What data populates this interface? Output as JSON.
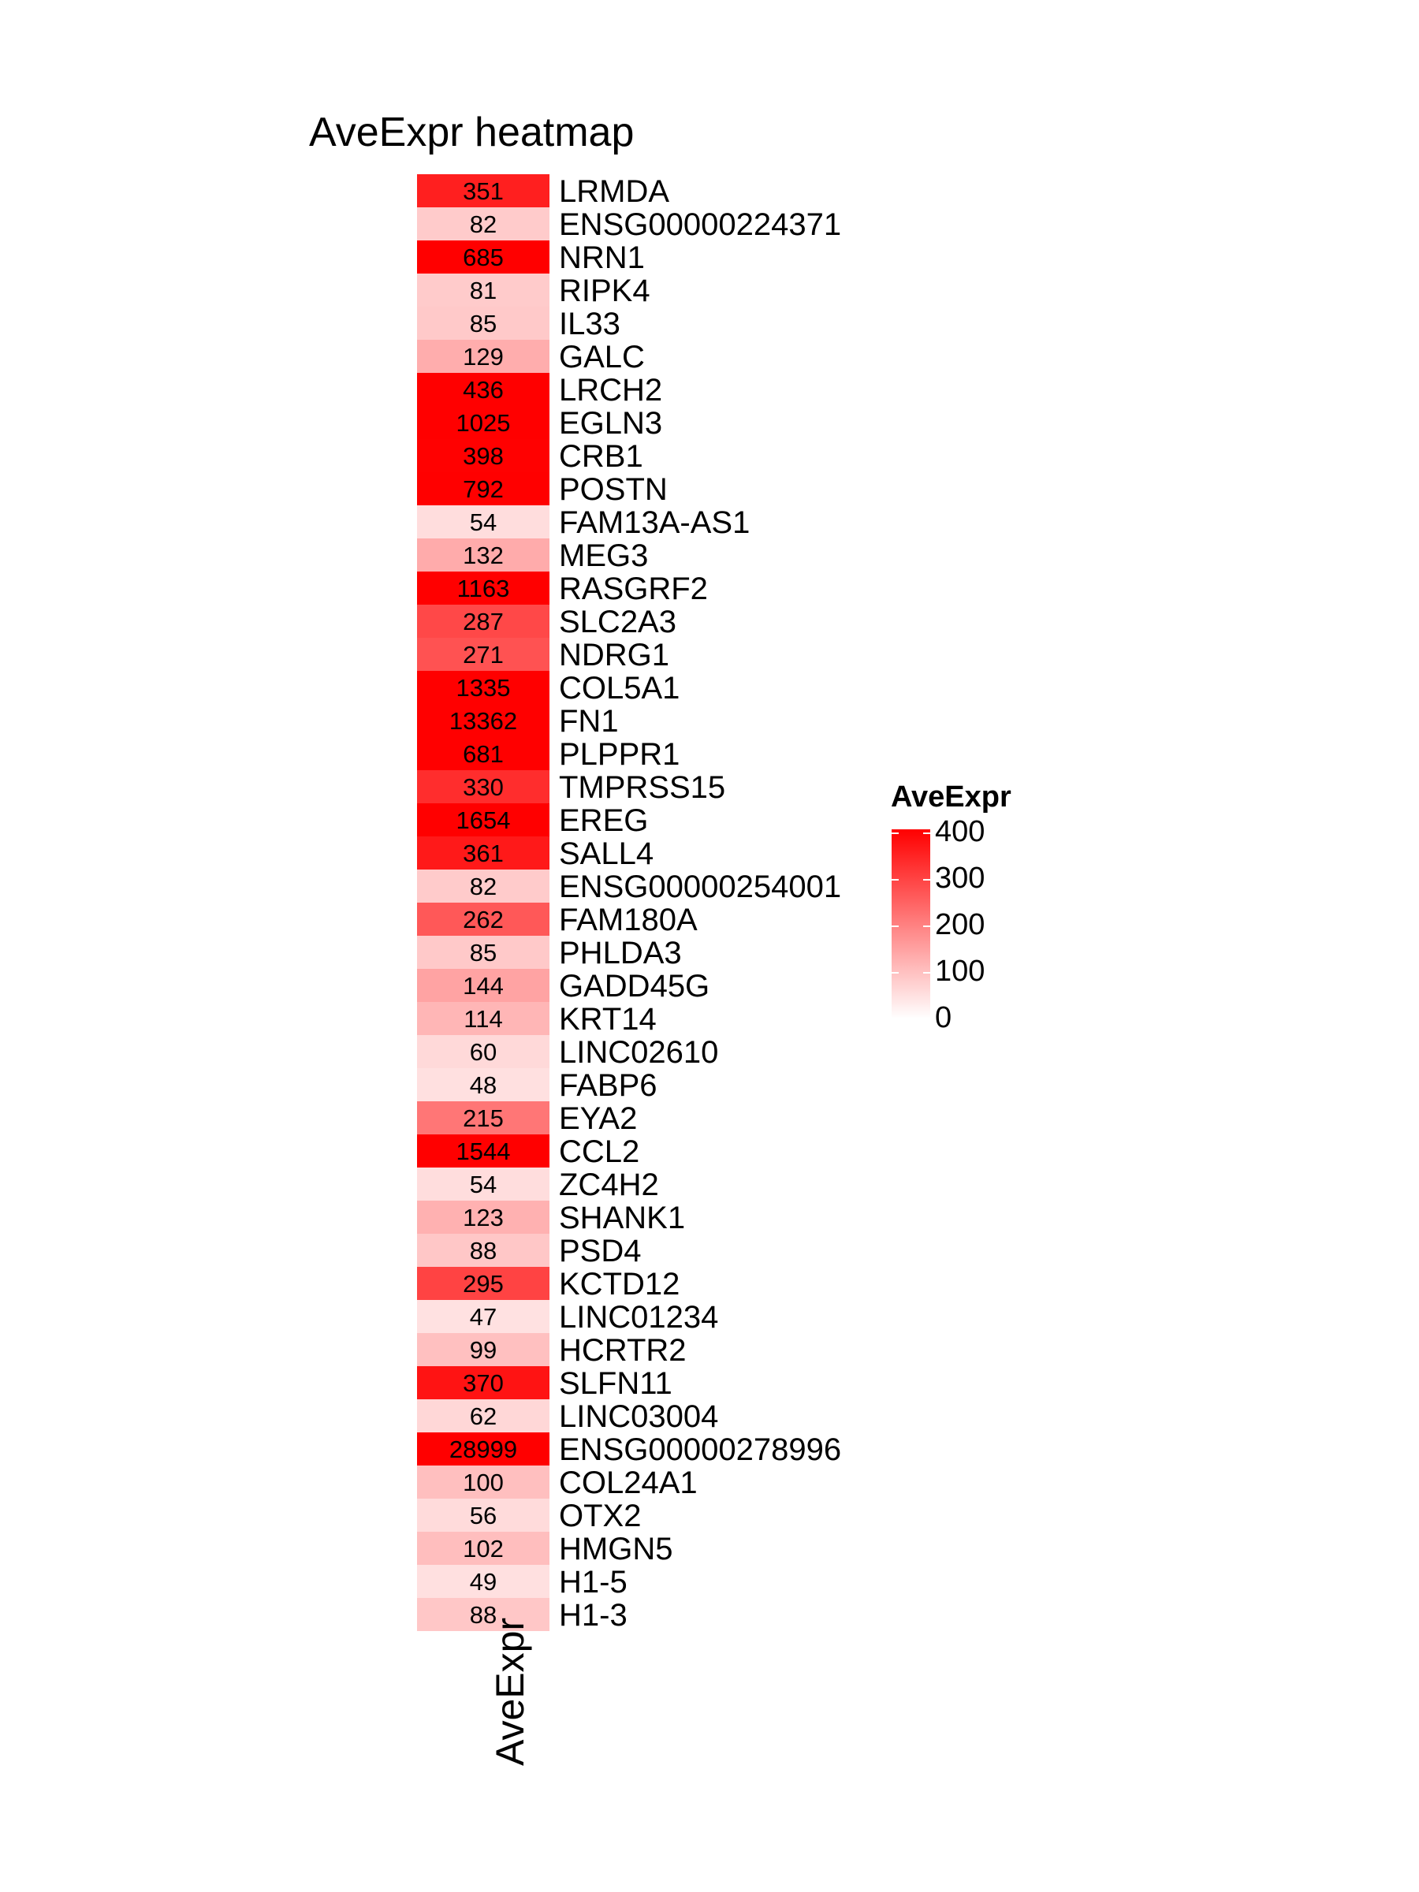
{
  "chart_data": {
    "type": "heatmap",
    "title": "AveExpr heatmap",
    "columns": [
      "AveExpr"
    ],
    "rows": [
      "LRMDA",
      "ENSG00000224371",
      "NRN1",
      "RIPK4",
      "IL33",
      "GALC",
      "LRCH2",
      "EGLN3",
      "CRB1",
      "POSTN",
      "FAM13A-AS1",
      "MEG3",
      "RASGRF2",
      "SLC2A3",
      "NDRG1",
      "COL5A1",
      "FN1",
      "PLPPR1",
      "TMPRSS15",
      "EREG",
      "SALL4",
      "ENSG00000254001",
      "FAM180A",
      "PHLDA3",
      "GADD45G",
      "KRT14",
      "LINC02610",
      "FABP6",
      "EYA2",
      "CCL2",
      "ZC4H2",
      "SHANK1",
      "PSD4",
      "KCTD12",
      "LINC01234",
      "HCRTR2",
      "SLFN11",
      "LINC03004",
      "ENSG00000278996",
      "COL24A1",
      "OTX2",
      "HMGN5",
      "H1-5",
      "H1-3"
    ],
    "values": [
      351,
      82,
      685,
      81,
      85,
      129,
      436,
      1025,
      398,
      792,
      54,
      132,
      1163,
      287,
      271,
      1335,
      13362,
      681,
      330,
      1654,
      361,
      82,
      262,
      85,
      144,
      114,
      60,
      48,
      215,
      1544,
      54,
      123,
      88,
      295,
      47,
      99,
      370,
      62,
      28999,
      100,
      56,
      102,
      49,
      88
    ],
    "color_scale": {
      "low": "#ffffff",
      "high": "#ff0000",
      "min": 0,
      "max": 400
    },
    "legend": {
      "title": "AveExpr",
      "ticks": [
        0,
        100,
        200,
        300,
        400
      ],
      "placement": "right"
    }
  }
}
